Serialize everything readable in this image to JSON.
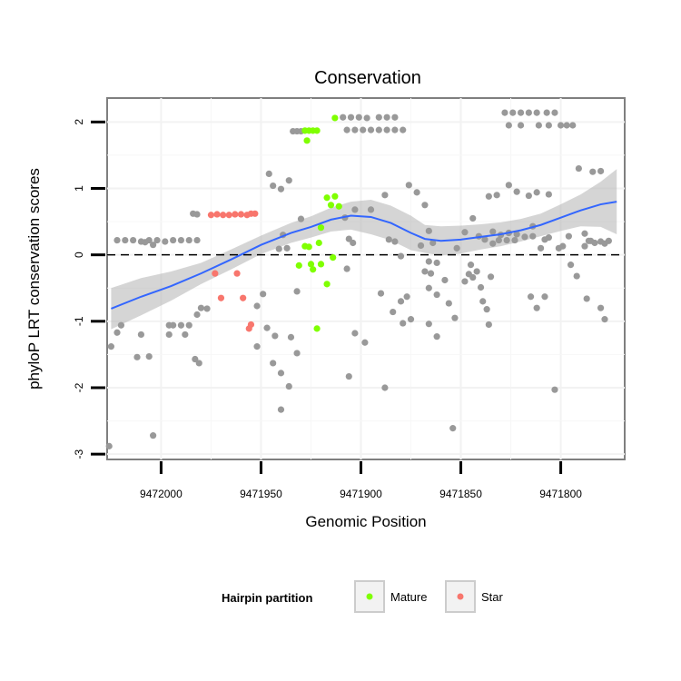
{
  "chart_data": {
    "type": "scatter",
    "title": "Conservation",
    "xlabel": "Genomic Position",
    "ylabel": "phyloP LRT conservation scores",
    "x_reversed": true,
    "xlim": [
      9472027,
      9471768
    ],
    "ylim": [
      -3.08,
      2.36
    ],
    "x_ticks": [
      9472000,
      9471950,
      9471900,
      9471850,
      9471800
    ],
    "y_ticks": [
      -3,
      -2,
      -1,
      0,
      1,
      2
    ],
    "grid": true,
    "reference_line": {
      "y": 0,
      "style": "dashed",
      "color": "#000000"
    },
    "legend": {
      "title": "Hairpin partition",
      "position": "bottom",
      "entries": [
        {
          "label": "Mature",
          "color": "#7fff00"
        },
        {
          "label": "Star",
          "color": "#f8766d"
        }
      ]
    },
    "series": [
      {
        "name": "Mature",
        "color": "#7fff00",
        "points": [
          [
            9471928,
            1.87
          ],
          [
            9471926,
            1.87
          ],
          [
            9471924,
            1.87
          ],
          [
            9471922,
            1.87
          ],
          [
            9471927,
            1.72
          ],
          [
            9471913,
            2.06
          ],
          [
            9471917,
            0.86
          ],
          [
            9471913,
            0.88
          ],
          [
            9471915,
            0.75
          ],
          [
            9471911,
            0.73
          ],
          [
            9471920,
            0.41
          ],
          [
            9471921,
            0.18
          ],
          [
            9471928,
            0.13
          ],
          [
            9471926,
            0.12
          ],
          [
            9471931,
            -0.16
          ],
          [
            9471925,
            -0.14
          ],
          [
            9471924,
            -0.22
          ],
          [
            9471920,
            -0.14
          ],
          [
            9471914,
            -0.04
          ],
          [
            9471917,
            -0.44
          ],
          [
            9471922,
            -1.11
          ]
        ]
      },
      {
        "name": "Star",
        "color": "#f8766d",
        "points": [
          [
            9471975,
            0.6
          ],
          [
            9471972,
            0.61
          ],
          [
            9471969,
            0.6
          ],
          [
            9471966,
            0.6
          ],
          [
            9471963,
            0.61
          ],
          [
            9471960,
            0.61
          ],
          [
            9471957,
            0.6
          ],
          [
            9471955,
            0.62
          ],
          [
            9471953,
            0.62
          ],
          [
            9471973,
            -0.28
          ],
          [
            9471962,
            -0.28
          ],
          [
            9471970,
            -0.65
          ],
          [
            9471959,
            -0.65
          ],
          [
            9471955,
            -1.05
          ],
          [
            9471956,
            -1.11
          ]
        ]
      },
      {
        "name": "",
        "color": "#999999",
        "points": [
          [
            9472022,
            0.22
          ],
          [
            9472018,
            0.22
          ],
          [
            9472014,
            0.22
          ],
          [
            9472010,
            0.2
          ],
          [
            9472006,
            0.22
          ],
          [
            9472002,
            0.22
          ],
          [
            9471998,
            0.2
          ],
          [
            9471994,
            0.22
          ],
          [
            9471990,
            0.22
          ],
          [
            9471986,
            0.22
          ],
          [
            9471982,
            0.22
          ],
          [
            9472004,
            0.15
          ],
          [
            9472008,
            0.19
          ],
          [
            9471984,
            0.62
          ],
          [
            9471982,
            0.61
          ],
          [
            9471980,
            -0.8
          ],
          [
            9471977,
            -0.81
          ],
          [
            9471982,
            -0.9
          ],
          [
            9472025,
            -1.38
          ],
          [
            9472022,
            -1.17
          ],
          [
            9472020,
            -1.06
          ],
          [
            9472012,
            -1.54
          ],
          [
            9472006,
            -1.53
          ],
          [
            9472010,
            -1.2
          ],
          [
            9471996,
            -1.06
          ],
          [
            9471994,
            -1.06
          ],
          [
            9471990,
            -1.06
          ],
          [
            9471986,
            -1.06
          ],
          [
            9471996,
            -1.2
          ],
          [
            9471988,
            -1.2
          ],
          [
            9471983,
            -1.57
          ],
          [
            9471981,
            -1.63
          ],
          [
            9472026,
            -2.88
          ],
          [
            9472004,
            -2.72
          ],
          [
            9471946,
            1.22
          ],
          [
            9471944,
            1.04
          ],
          [
            9471940,
            0.99
          ],
          [
            9471936,
            1.12
          ],
          [
            9471939,
            0.3
          ],
          [
            9471941,
            0.09
          ],
          [
            9471937,
            0.1
          ],
          [
            9471949,
            -0.59
          ],
          [
            9471952,
            -0.77
          ],
          [
            9471947,
            -1.1
          ],
          [
            9471943,
            -1.22
          ],
          [
            9471952,
            -1.38
          ],
          [
            9471944,
            -1.63
          ],
          [
            9471940,
            -1.78
          ],
          [
            9471936,
            -1.98
          ],
          [
            9471940,
            -2.33
          ],
          [
            9471932,
            -0.55
          ],
          [
            9471930,
            0.54
          ],
          [
            9471935,
            -1.24
          ],
          [
            9471932,
            -1.48
          ],
          [
            9471934,
            1.86
          ],
          [
            9471932,
            1.86
          ],
          [
            9471930,
            1.86
          ],
          [
            9471909,
            2.07
          ],
          [
            9471905,
            2.07
          ],
          [
            9471901,
            2.07
          ],
          [
            9471897,
            2.06
          ],
          [
            9471891,
            2.07
          ],
          [
            9471887,
            2.07
          ],
          [
            9471883,
            2.07
          ],
          [
            9471907,
            1.88
          ],
          [
            9471903,
            1.88
          ],
          [
            9471899,
            1.88
          ],
          [
            9471895,
            1.88
          ],
          [
            9471891,
            1.88
          ],
          [
            9471887,
            1.88
          ],
          [
            9471883,
            1.88
          ],
          [
            9471879,
            1.88
          ],
          [
            9471908,
            0.56
          ],
          [
            9471903,
            0.68
          ],
          [
            9471895,
            0.68
          ],
          [
            9471888,
            0.9
          ],
          [
            9471906,
            0.24
          ],
          [
            9471904,
            0.18
          ],
          [
            9471907,
            -0.21
          ],
          [
            9471903,
            -1.18
          ],
          [
            9471898,
            -1.32
          ],
          [
            9471906,
            -1.83
          ],
          [
            9471890,
            -0.58
          ],
          [
            9471888,
            -2.0
          ],
          [
            9471886,
            0.23
          ],
          [
            9471883,
            0.2
          ],
          [
            9471880,
            -0.02
          ],
          [
            9471884,
            -0.86
          ],
          [
            9471880,
            -0.7
          ],
          [
            9471877,
            -0.63
          ],
          [
            9471879,
            -1.03
          ],
          [
            9471875,
            -0.97
          ],
          [
            9471876,
            1.05
          ],
          [
            9471872,
            0.94
          ],
          [
            9471868,
            0.75
          ],
          [
            9471866,
            0.36
          ],
          [
            9471864,
            0.18
          ],
          [
            9471870,
            0.14
          ],
          [
            9471866,
            -0.1
          ],
          [
            9471862,
            -0.12
          ],
          [
            9471868,
            -0.25
          ],
          [
            9471866,
            -0.5
          ],
          [
            9471862,
            -0.6
          ],
          [
            9471865,
            -0.28
          ],
          [
            9471858,
            -0.38
          ],
          [
            9471856,
            -0.73
          ],
          [
            9471866,
            -1.04
          ],
          [
            9471862,
            -1.23
          ],
          [
            9471853,
            -0.95
          ],
          [
            9471854,
            -2.61
          ],
          [
            9471852,
            0.1
          ],
          [
            9471848,
            -0.4
          ],
          [
            9471846,
            -0.29
          ],
          [
            9471844,
            -0.34
          ],
          [
            9471845,
            -0.15
          ],
          [
            9471842,
            -0.25
          ],
          [
            9471840,
            -0.49
          ],
          [
            9471848,
            0.34
          ],
          [
            9471844,
            0.55
          ],
          [
            9471841,
            0.28
          ],
          [
            9471839,
            -0.7
          ],
          [
            9471837,
            -0.82
          ],
          [
            9471836,
            -1.05
          ],
          [
            9471836,
            0.88
          ],
          [
            9471832,
            0.9
          ],
          [
            9471826,
            1.05
          ],
          [
            9471834,
            0.17
          ],
          [
            9471830,
            0.3
          ],
          [
            9471826,
            0.33
          ],
          [
            9471822,
            0.31
          ],
          [
            9471818,
            0.27
          ],
          [
            9471814,
            0.28
          ],
          [
            9471834,
            0.35
          ],
          [
            9471838,
            0.23
          ],
          [
            9471831,
            0.22
          ],
          [
            9471827,
            0.22
          ],
          [
            9471823,
            0.22
          ],
          [
            9471835,
            -0.33
          ],
          [
            9471828,
            2.14
          ],
          [
            9471824,
            2.14
          ],
          [
            9471820,
            2.14
          ],
          [
            9471816,
            2.14
          ],
          [
            9471812,
            2.14
          ],
          [
            9471807,
            2.14
          ],
          [
            9471803,
            2.14
          ],
          [
            9471826,
            1.95
          ],
          [
            9471820,
            1.95
          ],
          [
            9471811,
            1.95
          ],
          [
            9471806,
            1.95
          ],
          [
            9471800,
            1.95
          ],
          [
            9471797,
            1.95
          ],
          [
            9471794,
            1.95
          ],
          [
            9471822,
            0.95
          ],
          [
            9471816,
            0.89
          ],
          [
            9471812,
            0.94
          ],
          [
            9471806,
            0.91
          ],
          [
            9471815,
            -0.63
          ],
          [
            9471808,
            -0.63
          ],
          [
            9471812,
            -0.8
          ],
          [
            9471814,
            0.43
          ],
          [
            9471808,
            0.23
          ],
          [
            9471810,
            0.1
          ],
          [
            9471806,
            0.26
          ],
          [
            9471801,
            0.1
          ],
          [
            9471799,
            0.13
          ],
          [
            9471796,
            0.28
          ],
          [
            9471791,
            1.3
          ],
          [
            9471784,
            1.25
          ],
          [
            9471780,
            1.26
          ],
          [
            9471788,
            0.32
          ],
          [
            9471786,
            0.21
          ],
          [
            9471783,
            0.18
          ],
          [
            9471778,
            0.17
          ],
          [
            9471788,
            0.13
          ],
          [
            9471785,
            0.21
          ],
          [
            9471780,
            0.2
          ],
          [
            9471776,
            0.21
          ],
          [
            9471795,
            -0.15
          ],
          [
            9471792,
            -0.32
          ],
          [
            9471787,
            -0.66
          ],
          [
            9471780,
            -0.8
          ],
          [
            9471778,
            -0.97
          ],
          [
            9471803,
            -2.03
          ]
        ]
      }
    ],
    "smooth": {
      "color": "#3366ff",
      "band_color": "#b3b3b3",
      "fit": [
        [
          9472025,
          -0.81
        ],
        [
          9472010,
          -0.63
        ],
        [
          9471995,
          -0.47
        ],
        [
          9471980,
          -0.28
        ],
        [
          9471965,
          -0.07
        ],
        [
          9471950,
          0.15
        ],
        [
          9471935,
          0.33
        ],
        [
          9471925,
          0.42
        ],
        [
          9471915,
          0.53
        ],
        [
          9471905,
          0.59
        ],
        [
          9471895,
          0.57
        ],
        [
          9471885,
          0.48
        ],
        [
          9471875,
          0.33
        ],
        [
          9471868,
          0.24
        ],
        [
          9471860,
          0.21
        ],
        [
          9471850,
          0.23
        ],
        [
          9471840,
          0.27
        ],
        [
          9471830,
          0.31
        ],
        [
          9471820,
          0.37
        ],
        [
          9471810,
          0.45
        ],
        [
          9471800,
          0.56
        ],
        [
          9471790,
          0.67
        ],
        [
          9471780,
          0.76
        ],
        [
          9471772,
          0.8
        ]
      ],
      "upper": [
        [
          9472025,
          -0.5
        ],
        [
          9472010,
          -0.35
        ],
        [
          9471995,
          -0.25
        ],
        [
          9471980,
          -0.12
        ],
        [
          9471965,
          0.08
        ],
        [
          9471950,
          0.29
        ],
        [
          9471935,
          0.48
        ],
        [
          9471925,
          0.58
        ],
        [
          9471915,
          0.71
        ],
        [
          9471905,
          0.8
        ],
        [
          9471895,
          0.83
        ],
        [
          9471885,
          0.74
        ],
        [
          9471875,
          0.59
        ],
        [
          9471868,
          0.45
        ],
        [
          9471860,
          0.43
        ],
        [
          9471850,
          0.44
        ],
        [
          9471840,
          0.46
        ],
        [
          9471830,
          0.49
        ],
        [
          9471820,
          0.54
        ],
        [
          9471810,
          0.62
        ],
        [
          9471800,
          0.76
        ],
        [
          9471790,
          0.91
        ],
        [
          9471780,
          1.1
        ],
        [
          9471772,
          1.29
        ]
      ],
      "lower": [
        [
          9472025,
          -1.12
        ],
        [
          9472010,
          -0.91
        ],
        [
          9471995,
          -0.69
        ],
        [
          9471980,
          -0.44
        ],
        [
          9471965,
          -0.22
        ],
        [
          9471950,
          0.01
        ],
        [
          9471935,
          0.18
        ],
        [
          9471925,
          0.26
        ],
        [
          9471915,
          0.35
        ],
        [
          9471905,
          0.38
        ],
        [
          9471895,
          0.31
        ],
        [
          9471885,
          0.22
        ],
        [
          9471875,
          0.07
        ],
        [
          9471868,
          0.03
        ],
        [
          9471860,
          -0.01
        ],
        [
          9471850,
          0.02
        ],
        [
          9471840,
          0.08
        ],
        [
          9471830,
          0.13
        ],
        [
          9471820,
          0.2
        ],
        [
          9471810,
          0.28
        ],
        [
          9471800,
          0.36
        ],
        [
          9471790,
          0.43
        ],
        [
          9471780,
          0.42
        ],
        [
          9471772,
          0.31
        ]
      ]
    }
  }
}
